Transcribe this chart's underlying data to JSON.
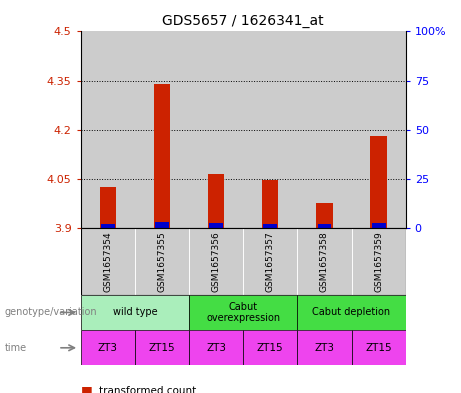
{
  "title": "GDS5657 / 1626341_at",
  "samples": [
    "GSM1657354",
    "GSM1657355",
    "GSM1657356",
    "GSM1657357",
    "GSM1657358",
    "GSM1657359"
  ],
  "red_values": [
    4.025,
    4.34,
    4.065,
    4.046,
    3.975,
    4.18
  ],
  "blue_values": [
    3.912,
    3.918,
    3.915,
    3.913,
    3.912,
    3.916
  ],
  "ymin": 3.9,
  "ymax": 4.5,
  "yticks_left": [
    3.9,
    4.05,
    4.2,
    4.35,
    4.5
  ],
  "yticks_right_labels": [
    "0",
    "25",
    "50",
    "75",
    "100%"
  ],
  "yticks_right_pct": [
    0,
    25,
    50,
    75,
    100
  ],
  "time_labels": [
    "ZT3",
    "ZT15",
    "ZT3",
    "ZT15",
    "ZT3",
    "ZT15"
  ],
  "time_color": "#EE44EE",
  "genotype_label": "genotype/variation",
  "time_row_label": "time",
  "bar_width": 0.3,
  "red_color": "#CC2200",
  "blue_color": "#0000CC",
  "bg_color": "#CCCCCC",
  "wildtype_color": "#AAEEBB",
  "cabut_over_color": "#44DD44",
  "cabut_dep_color": "#44DD44",
  "geno_groups": [
    {
      "label": "wild type",
      "start": 0,
      "end": 1,
      "color": "#AAEEBB"
    },
    {
      "label": "Cabut\noverexpression",
      "start": 2,
      "end": 3,
      "color": "#44DD44"
    },
    {
      "label": "Cabut depletion",
      "start": 4,
      "end": 5,
      "color": "#44DD44"
    }
  ]
}
